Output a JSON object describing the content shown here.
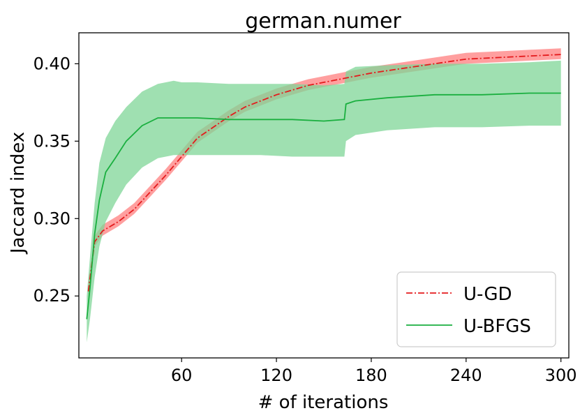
{
  "chart_data": {
    "type": "line",
    "title": "german.numer",
    "xlabel": "# of iterations",
    "ylabel": "Jaccard index",
    "xlim": [
      -5,
      305
    ],
    "ylim": [
      0.21,
      0.42
    ],
    "xticks": [
      60,
      120,
      180,
      240,
      300
    ],
    "xtick_labels": [
      "60",
      "120",
      "180",
      "240",
      "300"
    ],
    "yticks": [
      0.25,
      0.3,
      0.35,
      0.4
    ],
    "ytick_labels": [
      "0.25",
      "0.30",
      "0.35",
      "0.40"
    ],
    "grid": false,
    "legend_position": "lower-right",
    "series": [
      {
        "name": "U-GD",
        "color": "#e41a1c",
        "band_color": "#ff7f7f",
        "line_style": "dash-dot",
        "x": [
          1,
          5,
          10,
          20,
          30,
          40,
          50,
          60,
          70,
          80,
          90,
          100,
          120,
          140,
          160,
          180,
          200,
          220,
          240,
          260,
          280,
          300
        ],
        "mean": [
          0.253,
          0.285,
          0.292,
          0.298,
          0.306,
          0.317,
          0.328,
          0.34,
          0.352,
          0.359,
          0.366,
          0.372,
          0.38,
          0.386,
          0.39,
          0.394,
          0.397,
          0.4,
          0.403,
          0.404,
          0.405,
          0.406
        ],
        "lower": [
          0.247,
          0.282,
          0.289,
          0.295,
          0.303,
          0.314,
          0.325,
          0.337,
          0.349,
          0.356,
          0.363,
          0.369,
          0.377,
          0.383,
          0.387,
          0.391,
          0.394,
          0.397,
          0.4,
          0.401,
          0.402,
          0.403
        ],
        "upper": [
          0.259,
          0.289,
          0.296,
          0.302,
          0.31,
          0.321,
          0.332,
          0.344,
          0.356,
          0.363,
          0.37,
          0.376,
          0.384,
          0.39,
          0.394,
          0.398,
          0.401,
          0.404,
          0.407,
          0.408,
          0.409,
          0.41
        ]
      },
      {
        "name": "U-BFGS",
        "color": "#1aaf3f",
        "band_color": "#7fd697",
        "line_style": "solid",
        "x": [
          0,
          2,
          5,
          8,
          12,
          18,
          25,
          35,
          45,
          55,
          60,
          70,
          90,
          110,
          130,
          150,
          163,
          164,
          170,
          190,
          220,
          250,
          280,
          300
        ],
        "mean": [
          0.235,
          0.255,
          0.29,
          0.312,
          0.33,
          0.339,
          0.35,
          0.36,
          0.365,
          0.365,
          0.365,
          0.365,
          0.364,
          0.364,
          0.364,
          0.363,
          0.364,
          0.374,
          0.376,
          0.378,
          0.38,
          0.38,
          0.381,
          0.381
        ],
        "lower": [
          0.22,
          0.235,
          0.262,
          0.282,
          0.298,
          0.31,
          0.322,
          0.333,
          0.339,
          0.341,
          0.341,
          0.341,
          0.341,
          0.341,
          0.34,
          0.34,
          0.34,
          0.35,
          0.354,
          0.357,
          0.359,
          0.359,
          0.36,
          0.36
        ],
        "upper": [
          0.25,
          0.275,
          0.31,
          0.336,
          0.352,
          0.363,
          0.372,
          0.382,
          0.387,
          0.389,
          0.388,
          0.388,
          0.387,
          0.387,
          0.387,
          0.386,
          0.387,
          0.395,
          0.398,
          0.399,
          0.4,
          0.4,
          0.401,
          0.402
        ]
      }
    ]
  }
}
